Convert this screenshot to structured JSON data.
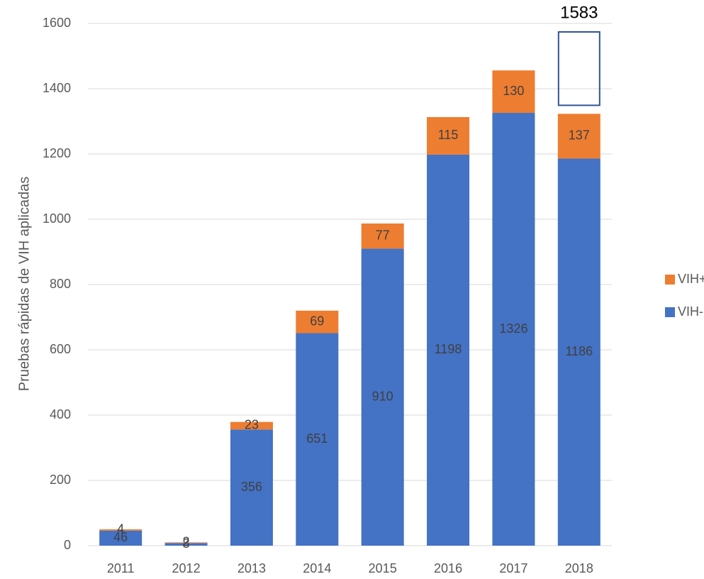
{
  "chart_data": {
    "type": "stacked_bar",
    "y_axis_label": "Pruebas rápidas de VIH aplicadas",
    "categories": [
      "2011",
      "2012",
      "2013",
      "2014",
      "2015",
      "2016",
      "2017",
      "2018"
    ],
    "series": [
      {
        "name": "VIH-",
        "color": "#4472c4",
        "values": [
          46,
          8,
          356,
          651,
          910,
          1198,
          1326,
          1186
        ]
      },
      {
        "name": "VIH+",
        "color": "#ed7d31",
        "values": [
          4,
          2,
          23,
          69,
          77,
          115,
          130,
          137
        ]
      }
    ],
    "annotation": "1583",
    "ylim": [
      0,
      1600
    ],
    "yticks": [
      0,
      200,
      400,
      600,
      800,
      1000,
      1200,
      1400,
      1600
    ],
    "grid": true,
    "legend": "right"
  }
}
